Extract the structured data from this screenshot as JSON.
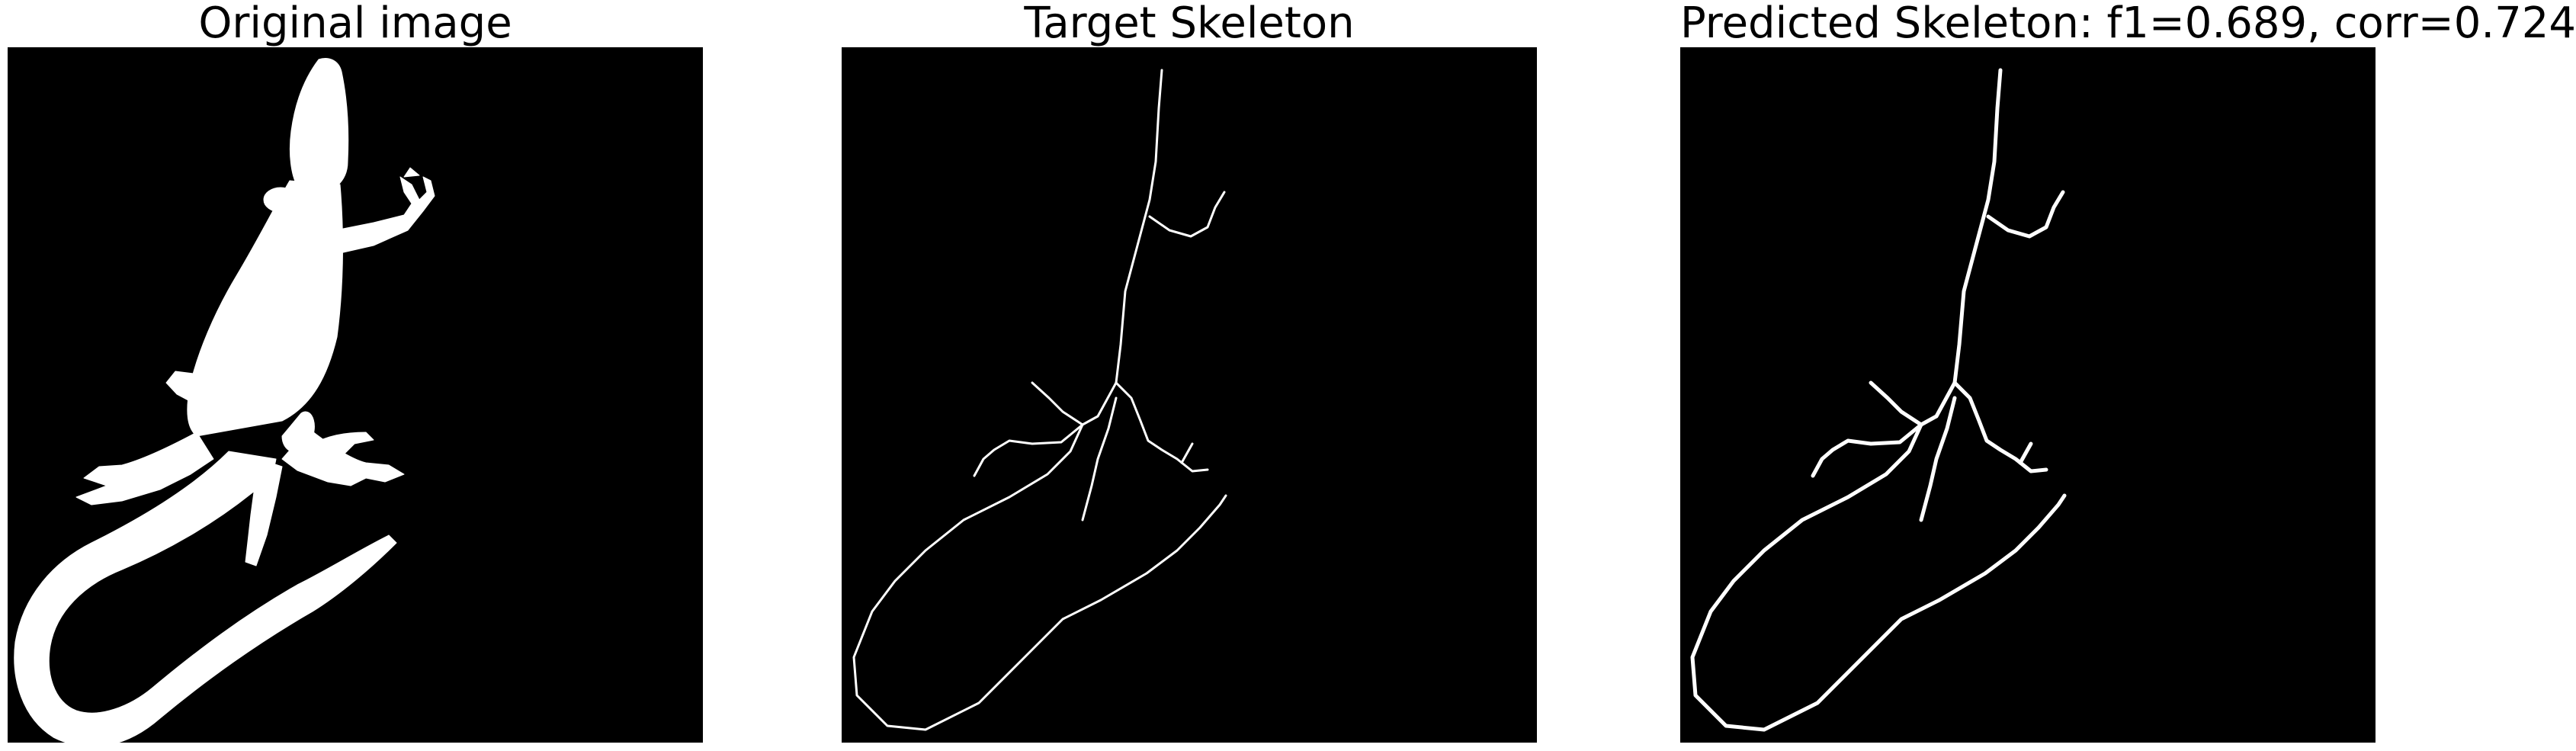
{
  "panels": [
    {
      "title": "Original image",
      "content": "silhouette"
    },
    {
      "title": "Target Skeleton",
      "content": "skeleton"
    },
    {
      "title": "Predicted Skeleton: f1=0.689, corr=0.724",
      "content": "skeleton"
    }
  ],
  "colors": {
    "background": "#000000",
    "foreground": "#ffffff",
    "page": "#ffffff"
  }
}
